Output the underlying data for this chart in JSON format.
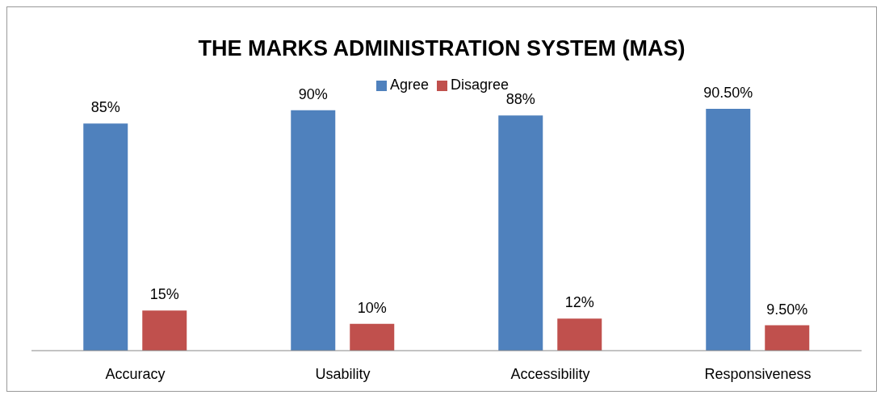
{
  "chart_data": {
    "type": "bar",
    "title": "THE MARKS ADMINISTRATION SYSTEM (MAS)",
    "categories": [
      "Accuracy",
      "Usability",
      "Accessibility",
      "Responsiveness"
    ],
    "series": [
      {
        "name": "Agree",
        "color": "#4f81bd",
        "values": [
          85,
          90,
          88,
          90.5
        ],
        "value_labels": [
          "85%",
          "90%",
          "88%",
          "90.50%"
        ]
      },
      {
        "name": "Disagree",
        "color": "#c0504d",
        "values": [
          15,
          10,
          12,
          9.5
        ],
        "value_labels": [
          "15%",
          "10%",
          "12%",
          "9.50%"
        ]
      }
    ],
    "legend": "top",
    "grid": false
  }
}
